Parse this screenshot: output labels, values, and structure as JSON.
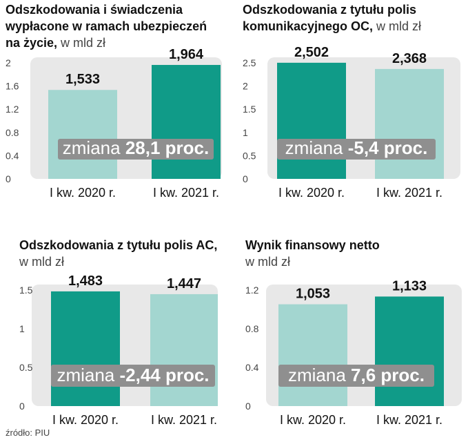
{
  "colors": {
    "bar_light": "#a3d6d0",
    "bar_dark": "#109b88",
    "plot_bg": "#e8e8e8",
    "badge_bg": "#8f8f8f"
  },
  "chart_data": [
    {
      "type": "bar",
      "title_lines": [
        "Odszkodowania i świadczenia",
        "wypłacone w ramach ubezpieczeń",
        "na życie,"
      ],
      "unit": " w mld zł",
      "categories": [
        "I kw. 2020 r.",
        "I kw. 2021 r."
      ],
      "values": [
        1.533,
        1.964
      ],
      "value_labels": [
        "1,533",
        "1,964"
      ],
      "bar_colors": [
        "light",
        "dark"
      ],
      "ylim": [
        0,
        2
      ],
      "yticks": [
        0,
        0.4,
        0.8,
        1.2,
        1.6,
        2
      ],
      "ytick_labels": [
        "0",
        "0.4",
        "0.8",
        "1.2",
        "1.6",
        "2"
      ],
      "change_prefix": "zmiana ",
      "change_value": "28,1 proc."
    },
    {
      "type": "bar",
      "title_lines": [
        "Odszkodowania z tytułu polis",
        "komunikacyjnego OC,"
      ],
      "unit": " w mld zł",
      "categories": [
        "I kw. 2020 r.",
        "I kw. 2021 r."
      ],
      "values": [
        2.502,
        2.368
      ],
      "value_labels": [
        "2,502",
        "2,368"
      ],
      "bar_colors": [
        "dark",
        "light"
      ],
      "ylim": [
        0,
        2.5
      ],
      "yticks": [
        0,
        0.5,
        1,
        1.5,
        2,
        2.5
      ],
      "ytick_labels": [
        "0",
        "0.5",
        "1",
        "1.5",
        "2",
        "2.5"
      ],
      "change_prefix": "zmiana ",
      "change_value": "-5,4 proc."
    },
    {
      "type": "bar",
      "title_lines": [
        "Odszkodowania z tytułu polis AC,"
      ],
      "unit": "w mld zł",
      "unit_on_new_line": true,
      "categories": [
        "I kw. 2020 r.",
        "I kw. 2021 r."
      ],
      "values": [
        1.483,
        1.447
      ],
      "value_labels": [
        "1,483",
        "1,447"
      ],
      "bar_colors": [
        "dark",
        "light"
      ],
      "ylim": [
        0,
        1.5
      ],
      "yticks": [
        0,
        0.5,
        1,
        1.5
      ],
      "ytick_labels": [
        "0",
        "0.5",
        "1",
        "1.5"
      ],
      "change_prefix": "zmiana ",
      "change_value": "-2,44 proc."
    },
    {
      "type": "bar",
      "title_lines": [
        "Wynik finansowy netto"
      ],
      "unit": "w mld zł",
      "unit_on_new_line": true,
      "categories": [
        "I kw. 2020 r.",
        "I kw. 2021 r."
      ],
      "values": [
        1.053,
        1.133
      ],
      "value_labels": [
        "1,053",
        "1,133"
      ],
      "bar_colors": [
        "light",
        "dark"
      ],
      "ylim": [
        0,
        1.2
      ],
      "yticks": [
        0,
        0.4,
        0.8,
        1.2
      ],
      "ytick_labels": [
        "0",
        "0.4",
        "0.8",
        "1.2"
      ],
      "change_prefix": "zmiana ",
      "change_value": "7,6 proc."
    }
  ],
  "source": "źródło: PIU"
}
